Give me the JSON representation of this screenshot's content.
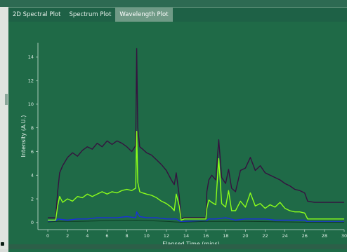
{
  "tabs": [
    {
      "label": "2D Spectral Plot",
      "active": false
    },
    {
      "label": "Spectrum Plot",
      "active": false
    },
    {
      "label": "Wavelength Plot",
      "active": true
    }
  ],
  "colors": {
    "plot_background": "#1f6a47",
    "axis": "#cfe3d8"
  },
  "chart_data": {
    "type": "line",
    "xlabel": "Elapsed Time (mins)",
    "ylabel": "Intensity (A.U.)",
    "xlim": [
      -1,
      30
    ],
    "ylim": [
      -0.6,
      15.2
    ],
    "x_ticks": [
      0,
      2,
      4,
      6,
      8,
      10,
      12,
      14,
      16,
      18,
      20,
      22,
      24,
      26,
      28,
      30
    ],
    "y_ticks": [
      0,
      2,
      4,
      6,
      8,
      10,
      12,
      14
    ],
    "grid": false,
    "series": [
      {
        "color": "#35123f",
        "x": [
          0,
          0.8,
          1.0,
          1.2,
          1.5,
          2,
          2.5,
          3,
          3.5,
          4,
          4.5,
          5,
          5.5,
          6,
          6.5,
          7,
          7.5,
          8,
          8.5,
          8.9,
          9.0,
          9.1,
          9.3,
          9.6,
          10,
          10.5,
          11,
          11.5,
          12,
          12.5,
          12.8,
          13,
          13.3,
          13.5,
          13.8,
          14,
          15,
          16,
          16.1,
          16.3,
          16.6,
          17,
          17.3,
          17.6,
          18,
          18.3,
          18.6,
          19,
          19.5,
          20,
          20.5,
          21,
          21.5,
          22,
          22.5,
          23,
          23.5,
          24,
          24.5,
          25,
          25.5,
          26,
          26.3,
          27,
          28,
          29,
          30
        ],
        "y": [
          0.4,
          0.4,
          2.6,
          4.2,
          4.8,
          5.5,
          5.9,
          5.6,
          6.1,
          6.4,
          6.2,
          6.7,
          6.4,
          6.9,
          6.6,
          6.9,
          6.7,
          6.4,
          6.0,
          6.5,
          14.7,
          8.0,
          6.4,
          6.2,
          5.9,
          5.7,
          5.3,
          4.9,
          4.4,
          3.6,
          3.2,
          4.2,
          2.3,
          0.3,
          0.4,
          0.4,
          0.4,
          0.4,
          2.6,
          3.6,
          4.0,
          3.6,
          7.0,
          3.8,
          3.3,
          4.5,
          2.9,
          2.6,
          4.4,
          4.6,
          5.5,
          4.4,
          4.8,
          4.2,
          4.0,
          3.8,
          3.6,
          3.3,
          3.1,
          2.8,
          2.7,
          2.5,
          1.8,
          1.7,
          1.7,
          1.7,
          1.7
        ]
      },
      {
        "color": "#8cff1a",
        "x": [
          0,
          0.8,
          1.0,
          1.2,
          1.5,
          2,
          2.5,
          3,
          3.5,
          4,
          4.5,
          5,
          5.5,
          6,
          6.5,
          7,
          7.5,
          8,
          8.5,
          8.9,
          9.0,
          9.1,
          9.3,
          9.6,
          10,
          10.5,
          11,
          11.5,
          12,
          12.5,
          12.8,
          13,
          13.3,
          13.5,
          13.8,
          14,
          15,
          16,
          16.1,
          16.3,
          16.6,
          17,
          17.3,
          17.6,
          18,
          18.3,
          18.6,
          19,
          19.5,
          20,
          20.5,
          21,
          21.5,
          22,
          22.5,
          23,
          23.5,
          24,
          24.5,
          25,
          25.5,
          26,
          26.3,
          27,
          28,
          29,
          30
        ],
        "y": [
          0.2,
          0.2,
          1.4,
          2.2,
          1.7,
          2.0,
          1.8,
          2.2,
          2.1,
          2.4,
          2.2,
          2.4,
          2.6,
          2.4,
          2.6,
          2.5,
          2.7,
          2.8,
          2.7,
          2.9,
          7.7,
          3.4,
          2.6,
          2.5,
          2.4,
          2.3,
          2.1,
          1.8,
          1.6,
          1.3,
          1.0,
          2.4,
          1.4,
          0.2,
          0.3,
          0.3,
          0.3,
          0.3,
          1.2,
          1.9,
          1.7,
          1.5,
          5.4,
          1.6,
          1.3,
          2.7,
          1.0,
          1.0,
          1.8,
          1.3,
          2.5,
          1.4,
          1.6,
          1.2,
          1.5,
          1.3,
          1.7,
          1.2,
          1.0,
          0.9,
          0.9,
          0.8,
          0.3,
          0.3,
          0.3,
          0.3,
          0.3
        ]
      },
      {
        "color": "#1a2ee0",
        "x": [
          0,
          0.8,
          1.0,
          2,
          3,
          4,
          5,
          6,
          7,
          8,
          8.9,
          9.0,
          9.3,
          10,
          11,
          12,
          13,
          13.5,
          14,
          15,
          16,
          16.3,
          17,
          18,
          19,
          20,
          21,
          22,
          23,
          24,
          25,
          26,
          26.3,
          27,
          28,
          29,
          30
        ],
        "y": [
          0.1,
          0.1,
          0.3,
          0.2,
          0.3,
          0.3,
          0.4,
          0.4,
          0.4,
          0.5,
          0.4,
          0.9,
          0.5,
          0.4,
          0.4,
          0.3,
          0.3,
          0.05,
          0.1,
          0.1,
          0.1,
          0.3,
          0.3,
          0.4,
          0.2,
          0.3,
          0.3,
          0.3,
          0.2,
          0.2,
          0.2,
          0.2,
          0.05,
          0.05,
          0.05,
          0.05,
          0.05
        ]
      },
      {
        "color": "#0e3a22",
        "x": [
          0,
          1,
          3,
          6,
          9,
          12,
          13.5,
          16,
          20,
          24,
          26.3,
          30
        ],
        "y": [
          0.05,
          0.1,
          0.1,
          0.15,
          0.2,
          0.1,
          0.02,
          0.1,
          0.1,
          0.05,
          0.02,
          0.02
        ]
      }
    ]
  }
}
